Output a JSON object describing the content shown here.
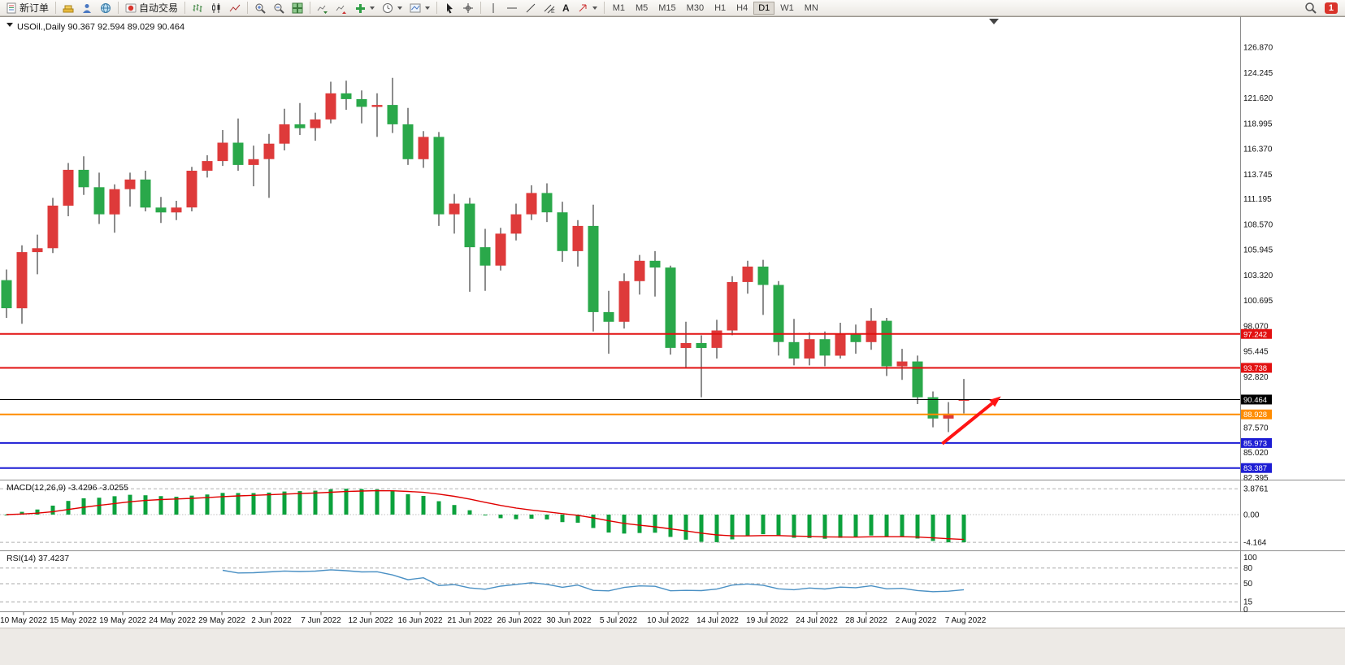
{
  "toolbar": {
    "new_order_label": "新订单",
    "autotrading_label": "自动交易",
    "text_tool_label": "A",
    "timeframes": [
      "M1",
      "M5",
      "M15",
      "M30",
      "H1",
      "H4",
      "D1",
      "W1",
      "MN"
    ],
    "active_timeframe": "D1",
    "notification_count": "1"
  },
  "chart_data": {
    "type": "candlestick",
    "symbol": "USOil.",
    "timeframe": "Daily",
    "title": {
      "symbol_period": "USOil.,Daily",
      "open": "90.367",
      "high": "92.594",
      "low": "89.029",
      "close": "90.464"
    },
    "up_color": "#de3a3a",
    "down_color": "#2aa84a",
    "wick_color": "#1a1a1a",
    "x_dates": [
      "10 May 2022",
      "15 May 2022",
      "19 May 2022",
      "24 May 2022",
      "29 May 2022",
      "2 Jun 2022",
      "7 Jun 2022",
      "12 Jun 2022",
      "16 Jun 2022",
      "21 Jun 2022",
      "26 Jun 2022",
      "30 Jun 2022",
      "5 Jul 2022",
      "10 Jul 2022",
      "14 Jul 2022",
      "19 Jul 2022",
      "24 Jul 2022",
      "28 Jul 2022",
      "2 Aug 2022",
      "7 Aug 2022"
    ],
    "price_axis_ticks": [
      "126.870",
      "124.245",
      "121.620",
      "118.995",
      "116.370",
      "113.745",
      "111.195",
      "108.570",
      "105.945",
      "103.320",
      "100.695",
      "98.070",
      "95.445",
      "92.820",
      "87.570",
      "85.020",
      "82.395"
    ],
    "ohlc": [
      [
        102.8,
        103.9,
        98.9,
        99.9
      ],
      [
        99.9,
        106.4,
        98.3,
        105.7
      ],
      [
        105.7,
        107.5,
        103.4,
        106.1
      ],
      [
        106.1,
        111.3,
        105.6,
        110.5
      ],
      [
        110.5,
        114.9,
        109.4,
        114.2
      ],
      [
        114.2,
        115.6,
        111.6,
        112.4
      ],
      [
        112.4,
        113.9,
        108.6,
        109.6
      ],
      [
        109.6,
        112.7,
        107.7,
        112.2
      ],
      [
        112.2,
        113.9,
        110.4,
        113.2
      ],
      [
        113.2,
        114.1,
        109.9,
        110.3
      ],
      [
        110.3,
        111.4,
        108.7,
        109.8
      ],
      [
        109.8,
        111.0,
        109.0,
        110.3
      ],
      [
        110.3,
        114.5,
        109.9,
        114.1
      ],
      [
        114.1,
        115.7,
        113.4,
        115.1
      ],
      [
        115.1,
        118.3,
        114.6,
        117.0
      ],
      [
        117.0,
        119.5,
        114.1,
        114.7
      ],
      [
        114.7,
        116.7,
        112.5,
        115.3
      ],
      [
        115.3,
        117.9,
        111.3,
        116.9
      ],
      [
        116.9,
        120.5,
        116.2,
        118.9
      ],
      [
        118.9,
        121.1,
        117.8,
        118.5
      ],
      [
        118.5,
        120.1,
        117.2,
        119.4
      ],
      [
        119.4,
        123.3,
        119.0,
        122.1
      ],
      [
        122.1,
        123.4,
        120.4,
        121.5
      ],
      [
        121.5,
        122.4,
        119.0,
        120.7
      ],
      [
        120.7,
        122.1,
        117.6,
        120.9
      ],
      [
        120.9,
        123.7,
        118.0,
        118.9
      ],
      [
        118.9,
        120.6,
        114.7,
        115.3
      ],
      [
        115.3,
        118.2,
        114.4,
        117.6
      ],
      [
        117.6,
        118.1,
        108.4,
        109.6
      ],
      [
        109.6,
        111.7,
        107.6,
        110.7
      ],
      [
        110.7,
        111.3,
        101.6,
        106.2
      ],
      [
        106.2,
        108.1,
        101.7,
        104.3
      ],
      [
        104.3,
        108.2,
        103.8,
        107.6
      ],
      [
        107.6,
        110.7,
        106.9,
        109.6
      ],
      [
        109.6,
        112.6,
        109.0,
        111.8
      ],
      [
        111.8,
        112.8,
        108.8,
        109.8
      ],
      [
        109.8,
        110.9,
        104.7,
        105.8
      ],
      [
        105.8,
        109.0,
        104.2,
        108.4
      ],
      [
        108.4,
        110.6,
        97.5,
        99.5
      ],
      [
        99.5,
        101.7,
        95.2,
        98.5
      ],
      [
        98.5,
        103.5,
        97.8,
        102.7
      ],
      [
        102.7,
        105.4,
        101.3,
        104.8
      ],
      [
        104.8,
        105.8,
        101.1,
        104.1
      ],
      [
        104.1,
        104.3,
        95.1,
        95.8
      ],
      [
        95.8,
        98.5,
        93.8,
        96.3
      ],
      [
        96.3,
        97.1,
        90.7,
        95.8
      ],
      [
        95.8,
        98.7,
        94.7,
        97.6
      ],
      [
        97.6,
        103.2,
        97.1,
        102.6
      ],
      [
        102.6,
        104.8,
        101.4,
        104.2
      ],
      [
        104.2,
        104.9,
        99.2,
        102.3
      ],
      [
        102.3,
        102.7,
        95.0,
        96.4
      ],
      [
        96.4,
        98.8,
        94.0,
        94.7
      ],
      [
        94.7,
        97.4,
        94.0,
        96.7
      ],
      [
        96.7,
        97.5,
        93.9,
        95.0
      ],
      [
        95.0,
        98.4,
        94.7,
        97.3
      ],
      [
        97.3,
        98.2,
        95.2,
        96.4
      ],
      [
        96.4,
        99.9,
        95.6,
        98.6
      ],
      [
        98.6,
        98.9,
        92.9,
        93.9
      ],
      [
        93.9,
        95.7,
        92.5,
        94.4
      ],
      [
        94.4,
        95.0,
        90.0,
        90.7
      ],
      [
        90.7,
        91.3,
        87.6,
        88.5
      ],
      [
        88.5,
        90.2,
        87.1,
        89.0
      ],
      [
        90.367,
        92.594,
        89.029,
        90.464
      ]
    ],
    "line_objects": [
      {
        "name": "resistance-line-upper",
        "price": 97.242,
        "label": "97.242",
        "color": "#e21111",
        "width": 2
      },
      {
        "name": "resistance-line-lower",
        "price": 93.738,
        "label": "93.738",
        "color": "#e21111",
        "width": 2
      },
      {
        "name": "bid-price-line",
        "price": 90.464,
        "label": "90.464",
        "color": "#000000",
        "width": 1
      },
      {
        "name": "support-line-orange",
        "price": 88.928,
        "label": "88.928",
        "color": "#ff8c00",
        "width": 2
      },
      {
        "name": "support-line-blue-upper",
        "price": 85.973,
        "label": "85.973",
        "color": "#1d1dd4",
        "width": 2
      },
      {
        "name": "support-line-blue-lower",
        "price": 83.387,
        "label": "83.387",
        "color": "#1d1dd4",
        "width": 2
      }
    ],
    "trend_arrow": {
      "color": "#ff1414",
      "from_index": 60.6,
      "from_price": 85.9,
      "to_index": 64.4,
      "to_price": 90.8
    },
    "indicators": [
      {
        "name": "MACD",
        "label": "MACD(12,26,9)",
        "values": [
          "-3.4296",
          "-3.0255"
        ],
        "axis": [
          "3.8761",
          "0.00",
          "-4.164"
        ],
        "histogram_color": "#0ca13c",
        "signal_color": "#e00000",
        "range_max": 3.8761,
        "range_min": -4.164
      },
      {
        "name": "RSI",
        "label": "RSI(14)",
        "values": [
          "37.4237"
        ],
        "axis": [
          "100",
          "80",
          "50",
          "15",
          "0"
        ],
        "line_color": "#4a90c4",
        "levels": [
          80,
          50,
          15
        ]
      }
    ]
  }
}
